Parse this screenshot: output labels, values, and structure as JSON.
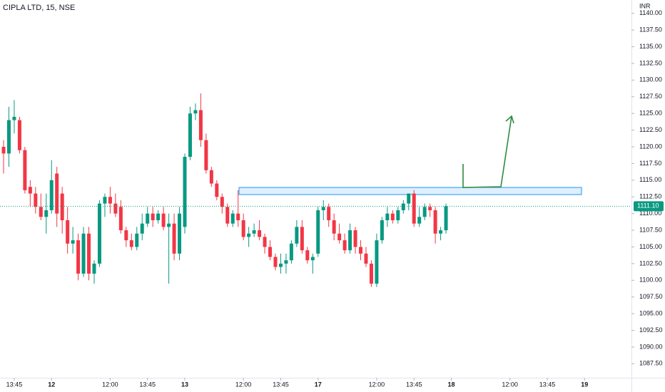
{
  "chart_data": {
    "type": "candlestick",
    "title": "CIPLA LTD, 15, NSE",
    "currency": "INR",
    "up_color": "#089981",
    "down_color": "#f23645",
    "open": [
      1120,
      1119,
      1124,
      1124,
      1119.5,
      1114,
      1113,
      1111,
      1109.5,
      1110.5,
      1116,
      1113,
      1109,
      1105.5,
      1106,
      1101,
      1107,
      1101,
      1102.5,
      1111.5,
      1112.5,
      1111.5,
      1111,
      1107.5,
      1106,
      1105,
      1107,
      1108.5,
      1110,
      1109,
      1110,
      1108,
      1108.5,
      1104,
      1108,
      1118.5,
      1125,
      1125.5,
      1121,
      1116.5,
      1114.5,
      1112.5,
      1111,
      1108.5,
      1110,
      1109,
      1106.5,
      1107,
      1107.5,
      1106.5,
      1105,
      1103.5,
      1102,
      1102.5,
      1103,
      1105.5,
      1108,
      1104.5,
      1103,
      1104,
      1110.5,
      1111,
      1109,
      1107,
      1106,
      1104.5,
      1107.5,
      1105,
      1104,
      1102.5,
      1099.5,
      1106,
      1109,
      1110,
      1109,
      1110.5,
      1111.5,
      1113,
      1108.5,
      1109.5,
      1111,
      1110.5,
      1107,
      1107.5
    ],
    "high": [
      1121,
      1126,
      1127,
      1124.5,
      1120,
      1115,
      1114,
      1113,
      1113,
      1118,
      1117,
      1114,
      1111,
      1108,
      1107,
      1108,
      1108,
      1103,
      1112,
      1113,
      1114,
      1113,
      1112,
      1108,
      1107,
      1108,
      1110,
      1111,
      1111,
      1110.5,
      1111,
      1110,
      1110,
      1111,
      1119,
      1126,
      1126.5,
      1128,
      1122,
      1117,
      1115,
      1113,
      1111.5,
      1110.5,
      1113.5,
      1110,
      1108,
      1108.5,
      1109,
      1107,
      1106,
      1104,
      1104,
      1104,
      1106,
      1109,
      1109,
      1105,
      1104,
      1111,
      1112,
      1111.5,
      1110,
      1108.5,
      1107,
      1108.5,
      1108,
      1106,
      1105,
      1103,
      1107,
      1109.5,
      1111,
      1110.5,
      1111,
      1112,
      1113,
      1113.5,
      1111,
      1111.5,
      1111.5,
      1111,
      1108,
      1111.5
    ],
    "low": [
      1116,
      1117,
      1122,
      1119,
      1113,
      1111,
      1110,
      1109,
      1107,
      1110,
      1108,
      1107,
      1104,
      1104,
      1100,
      1100.5,
      1100,
      1099.5,
      1102,
      1109.5,
      1110,
      1109.5,
      1107,
      1105,
      1104.5,
      1104.5,
      1106,
      1108,
      1108,
      1108.5,
      1107.5,
      1099.5,
      1103,
      1103,
      1107,
      1118,
      1124,
      1120,
      1116,
      1114,
      1112,
      1110,
      1108,
      1108,
      1108,
      1106,
      1105,
      1106.5,
      1106,
      1104,
      1103,
      1101.5,
      1101,
      1101,
      1102.5,
      1105,
      1104,
      1102.5,
      1101,
      1103.5,
      1109,
      1108,
      1106,
      1105.5,
      1104,
      1104,
      1104,
      1103,
      1102,
      1099,
      1099,
      1105.5,
      1108,
      1108.5,
      1108.5,
      1110,
      1110.5,
      1108,
      1108,
      1109,
      1109.5,
      1105.5,
      1106,
      1107
    ],
    "close": [
      1119,
      1124,
      1124.5,
      1119.5,
      1113.5,
      1113,
      1111,
      1109.5,
      1110.5,
      1115,
      1110,
      1109,
      1105.5,
      1106,
      1101,
      1107,
      1101,
      1102.5,
      1111.5,
      1112.5,
      1111.5,
      1110,
      1107.5,
      1106,
      1105,
      1107,
      1108.5,
      1110,
      1109,
      1110,
      1108,
      1108.5,
      1104,
      1110,
      1118.5,
      1125,
      1125.5,
      1121,
      1116.5,
      1114.5,
      1112.5,
      1111,
      1108.5,
      1110,
      1109,
      1106.5,
      1107,
      1107.5,
      1106.5,
      1105,
      1103.5,
      1102,
      1102.5,
      1103,
      1105.5,
      1108,
      1104.5,
      1103,
      1103.5,
      1110.5,
      1111,
      1109,
      1107,
      1106,
      1104.5,
      1107.5,
      1105,
      1104,
      1102.5,
      1099.5,
      1106,
      1109,
      1110,
      1109,
      1110.5,
      1111.5,
      1113,
      1108.5,
      1109.5,
      1111,
      1110.5,
      1107,
      1107.5,
      1111.1
    ],
    "ylim": [
      1085.4,
      1142
    ],
    "yticks": [
      {
        "value": 1140,
        "label": "1140.00"
      },
      {
        "value": 1137.5,
        "label": "1137.50"
      },
      {
        "value": 1135,
        "label": "1135.00"
      },
      {
        "value": 1132.5,
        "label": "1132.50"
      },
      {
        "value": 1130,
        "label": "1130.00"
      },
      {
        "value": 1127.5,
        "label": "1127.50"
      },
      {
        "value": 1125,
        "label": "1125.00"
      },
      {
        "value": 1122.5,
        "label": "1122.50"
      },
      {
        "value": 1120,
        "label": "1120.00"
      },
      {
        "value": 1117.5,
        "label": "1117.50"
      },
      {
        "value": 1115,
        "label": "1115.00"
      },
      {
        "value": 1112.5,
        "label": "1112.50"
      },
      {
        "value": 1110,
        "label": "1110.00"
      },
      {
        "value": 1107.5,
        "label": "1107.50"
      },
      {
        "value": 1105,
        "label": "1105.00"
      },
      {
        "value": 1102.5,
        "label": "1102.50"
      },
      {
        "value": 1100,
        "label": "1100.00"
      },
      {
        "value": 1097.5,
        "label": "1097.50"
      },
      {
        "value": 1095,
        "label": "1095.00"
      },
      {
        "value": 1092.5,
        "label": "1092.50"
      },
      {
        "value": 1090,
        "label": "1090.00"
      },
      {
        "value": 1087.5,
        "label": "1087.50"
      }
    ],
    "last_price": {
      "value": 1111.1,
      "label": "1111.10"
    },
    "xlim": [
      -0.67,
      117.8
    ],
    "xticks": [
      {
        "value": 2,
        "label": "13:45"
      },
      {
        "value": 9,
        "label": "12"
      },
      {
        "value": 20,
        "label": "12:00"
      },
      {
        "value": 27,
        "label": "13:45"
      },
      {
        "value": 34,
        "label": "13"
      },
      {
        "value": 45,
        "label": "12:00"
      },
      {
        "value": 52,
        "label": "13:45"
      },
      {
        "value": 59,
        "label": "17"
      },
      {
        "value": 70,
        "label": "12:00"
      },
      {
        "value": 77,
        "label": "13:45"
      },
      {
        "value": 84,
        "label": "18"
      },
      {
        "value": 95,
        "label": "12:00"
      },
      {
        "value": 102,
        "label": "13:45"
      },
      {
        "value": 109,
        "label": "19"
      }
    ]
  }
}
